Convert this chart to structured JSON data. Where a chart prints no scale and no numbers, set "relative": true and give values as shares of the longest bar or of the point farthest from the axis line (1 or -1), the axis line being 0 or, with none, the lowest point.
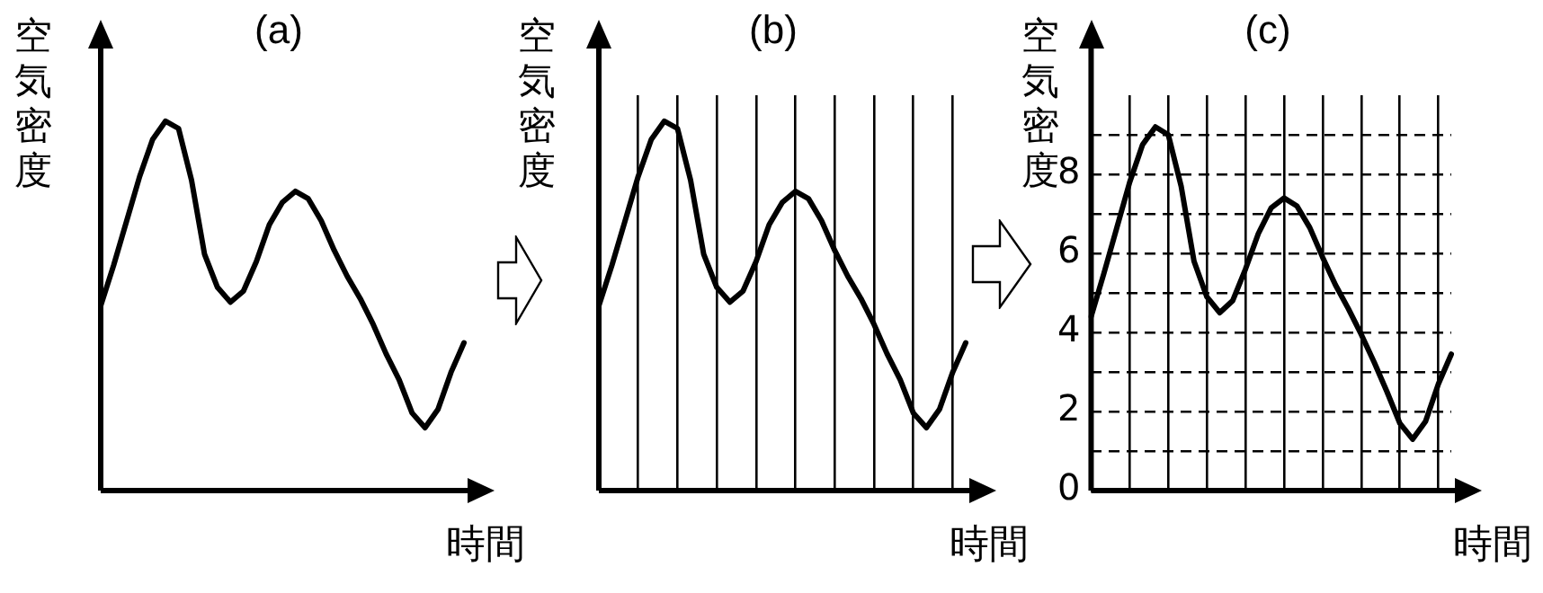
{
  "chart_data": [
    {
      "type": "line",
      "title": "(a)",
      "xlabel": "時間",
      "ylabel": "空気密度",
      "relative": true,
      "color": "#000000",
      "grid": false,
      "tick_labels": false,
      "categories": [
        null,
        null,
        null,
        null,
        null,
        null,
        null,
        null,
        null,
        null,
        null,
        null,
        null,
        null,
        null,
        null,
        null,
        null,
        null,
        null,
        null,
        null,
        null,
        null,
        null,
        null,
        null,
        null,
        null
      ],
      "values": [
        0.5,
        0.61,
        0.73,
        0.85,
        0.95,
        1,
        0.98,
        0.84,
        0.64,
        0.55,
        0.51,
        0.54,
        0.62,
        0.72,
        0.78,
        0.81,
        0.79,
        0.73,
        0.65,
        0.58,
        0.52,
        0.45,
        0.37,
        0.3,
        0.21,
        0.17,
        0.22,
        0.32,
        0.4
      ]
    },
    {
      "type": "line",
      "title": "(b)",
      "xlabel": "時間",
      "ylabel": "空気密度",
      "relative": true,
      "color": "#000000",
      "grid": "x",
      "tick_labels": false,
      "categories": [
        null,
        null,
        null,
        null,
        null,
        null,
        null,
        null,
        null,
        null,
        null,
        null,
        null,
        null,
        null,
        null,
        null,
        null,
        null,
        null,
        null,
        null,
        null,
        null,
        null,
        null,
        null,
        null,
        null
      ],
      "values": [
        0.5,
        0.61,
        0.73,
        0.85,
        0.95,
        1,
        0.98,
        0.84,
        0.64,
        0.55,
        0.51,
        0.54,
        0.62,
        0.72,
        0.78,
        0.81,
        0.79,
        0.73,
        0.65,
        0.58,
        0.52,
        0.45,
        0.37,
        0.3,
        0.21,
        0.17,
        0.22,
        0.32,
        0.4
      ]
    },
    {
      "type": "line",
      "title": "(c)",
      "xlabel": "時間",
      "ylabel": "空気密度",
      "color": "#000000",
      "grid": true,
      "tick_labels": "y",
      "ylim": [
        0,
        10
      ],
      "yticks": [
        0,
        {
          "value": 1,
          "label": null
        },
        2,
        {
          "value": 3,
          "label": null
        },
        4,
        {
          "value": 5,
          "label": null
        },
        6,
        {
          "value": 7,
          "label": null
        },
        8,
        {
          "value": 9,
          "label": null
        }
      ],
      "categories": [
        null,
        null,
        null,
        null,
        null,
        null,
        null,
        null,
        null,
        null,
        null,
        null,
        null,
        null,
        null,
        null,
        null,
        null,
        null,
        null,
        null,
        null,
        null,
        null,
        null,
        null,
        null,
        null,
        null
      ],
      "values": [
        4.4,
        5.5,
        6.65,
        7.8,
        8.75,
        9.2,
        9.0,
        7.7,
        5.8,
        4.9,
        4.5,
        4.8,
        5.6,
        6.5,
        7.15,
        7.4,
        7.2,
        6.65,
        5.9,
        5.2,
        4.6,
        3.95,
        3.25,
        2.5,
        1.7,
        1.3,
        1.75,
        2.7,
        3.45
      ]
    }
  ]
}
